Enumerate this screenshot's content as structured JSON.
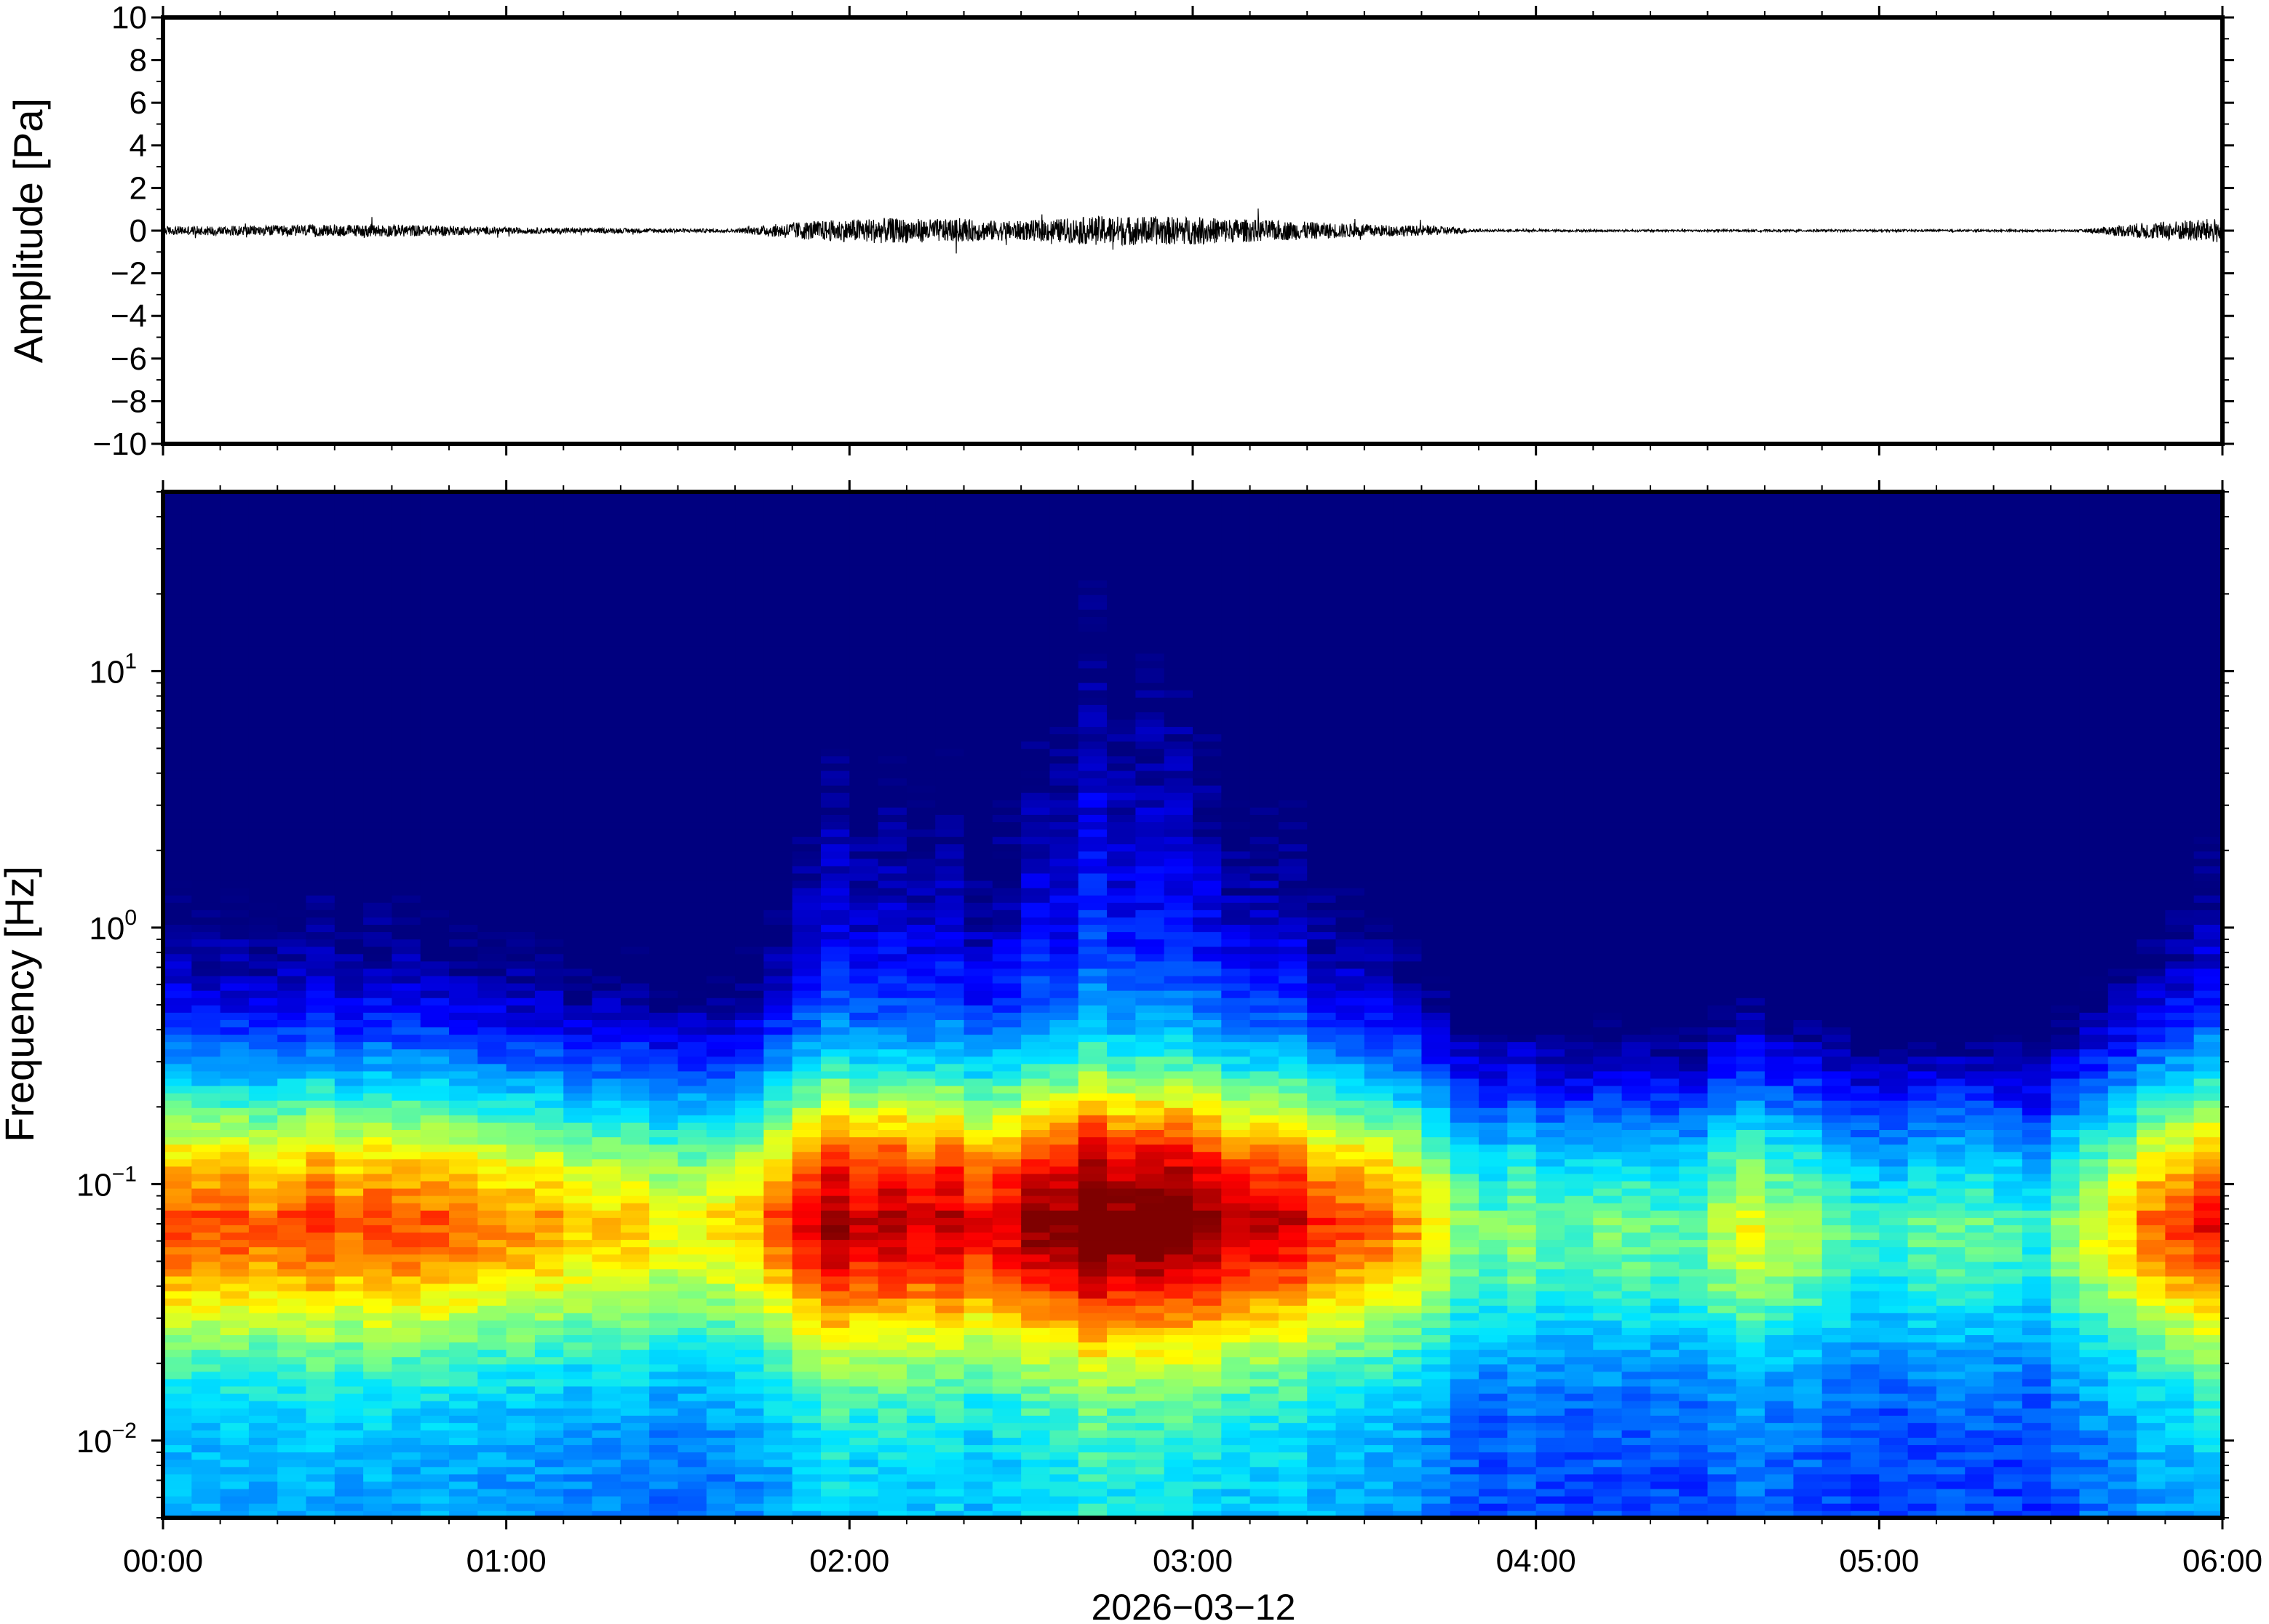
{
  "chart_data": [
    {
      "type": "line",
      "ylabel": "Amplitude [Pa]",
      "ylim": [
        -10,
        10
      ],
      "y_ticks": [
        {
          "value": 10,
          "label": "10"
        },
        {
          "value": 8,
          "label": "8"
        },
        {
          "value": 6,
          "label": "6"
        },
        {
          "value": 4,
          "label": "4"
        },
        {
          "value": 2,
          "label": "2"
        },
        {
          "value": 0,
          "label": "0"
        },
        {
          "value": -2,
          "label": "−2"
        },
        {
          "value": -4,
          "label": "−4"
        },
        {
          "value": -6,
          "label": "−6"
        },
        {
          "value": -8,
          "label": "−8"
        },
        {
          "value": -10,
          "label": "−10"
        }
      ],
      "xlim": [
        "00:00",
        "06:00"
      ],
      "series": [
        {
          "color": "#000000",
          "envelope": [
            {
              "t": "00:00",
              "amp": 0.2
            },
            {
              "t": "00:40",
              "amp": 0.3
            },
            {
              "t": "01:00",
              "amp": 0.15
            },
            {
              "t": "01:40",
              "amp": 0.08
            },
            {
              "t": "01:50",
              "amp": 0.4
            },
            {
              "t": "02:05",
              "amp": 0.6
            },
            {
              "t": "02:30",
              "amp": 0.45
            },
            {
              "t": "02:45",
              "amp": 0.7
            },
            {
              "t": "03:00",
              "amp": 0.65
            },
            {
              "t": "03:30",
              "amp": 0.3
            },
            {
              "t": "03:45",
              "amp": 0.2
            },
            {
              "t": "03:50",
              "amp": 0.05
            },
            {
              "t": "05:35",
              "amp": 0.05
            },
            {
              "t": "05:45",
              "amp": 0.35
            },
            {
              "t": "06:00",
              "amp": 0.6
            }
          ]
        }
      ]
    },
    {
      "type": "heatmap",
      "ylabel": "Frequency [Hz]",
      "xlabel": "2026−03−12",
      "y_scale": "log",
      "ylim": [
        0.005,
        50
      ],
      "y_ticks": [
        {
          "value": 10,
          "base": "10",
          "exp": "1"
        },
        {
          "value": 1,
          "base": "10",
          "exp": "0"
        },
        {
          "value": 0.1,
          "base": "10",
          "exp": "−1"
        },
        {
          "value": 0.01,
          "base": "10",
          "exp": "−2"
        }
      ],
      "x_ticks": [
        {
          "value": 0,
          "label": "00:00"
        },
        {
          "value": 1,
          "label": "01:00"
        },
        {
          "value": 2,
          "label": "02:00"
        },
        {
          "value": 3,
          "label": "03:00"
        },
        {
          "value": 4,
          "label": "04:00"
        },
        {
          "value": 5,
          "label": "05:00"
        },
        {
          "value": 6,
          "label": "06:00"
        }
      ],
      "x_unit": "hours",
      "colormap": "jet",
      "colormap_stops": [
        "#00007f",
        "#0000ff",
        "#007fff",
        "#00e5ff",
        "#7fff7f",
        "#ffff00",
        "#ff7f00",
        "#ff0000",
        "#7f0000"
      ],
      "time_columns": 72,
      "activity_profile": [
        {
          "t": 0.0,
          "level": 0.55
        },
        {
          "t": 0.9,
          "level": 0.5
        },
        {
          "t": 1.2,
          "level": 0.42
        },
        {
          "t": 1.55,
          "level": 0.32
        },
        {
          "t": 1.75,
          "level": 0.38
        },
        {
          "t": 1.9,
          "level": 0.72
        },
        {
          "t": 2.2,
          "level": 0.7
        },
        {
          "t": 2.4,
          "level": 0.62
        },
        {
          "t": 2.7,
          "level": 0.85
        },
        {
          "t": 3.0,
          "level": 0.78
        },
        {
          "t": 3.3,
          "level": 0.62
        },
        {
          "t": 3.6,
          "level": 0.5
        },
        {
          "t": 3.8,
          "level": 0.18
        },
        {
          "t": 4.4,
          "level": 0.12
        },
        {
          "t": 4.6,
          "level": 0.28
        },
        {
          "t": 5.0,
          "level": 0.12
        },
        {
          "t": 5.5,
          "level": 0.1
        },
        {
          "t": 5.65,
          "level": 0.35
        },
        {
          "t": 6.0,
          "level": 0.65
        }
      ]
    }
  ]
}
